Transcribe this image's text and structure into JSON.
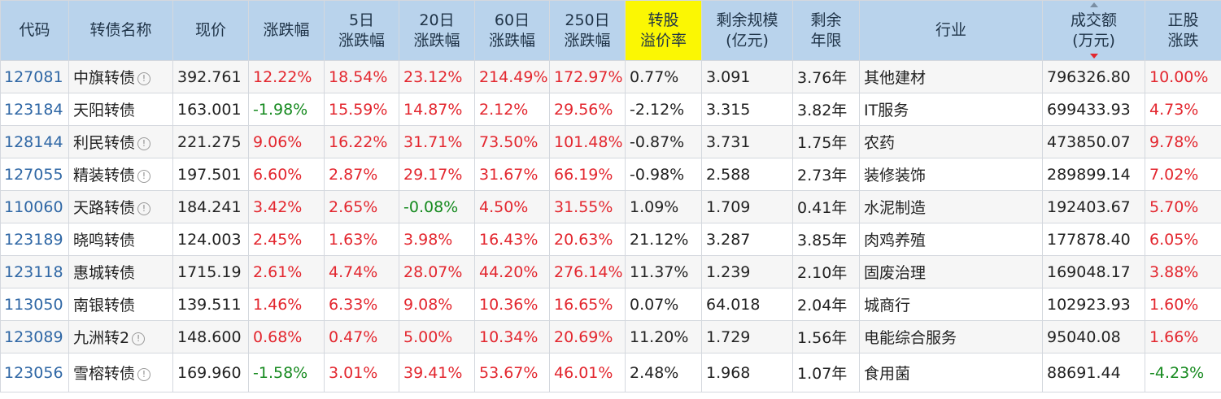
{
  "headers": {
    "code": "代码",
    "name": "转债名称",
    "price": "现价",
    "change": "涨跌幅",
    "change5d_1": "5日",
    "change5d_2": "涨跌幅",
    "change20d_1": "20日",
    "change20d_2": "涨跌幅",
    "change60d_1": "60日",
    "change60d_2": "涨跌幅",
    "change250d_1": "250日",
    "change250d_2": "涨跌幅",
    "premium_1": "转股",
    "premium_2": "溢价率",
    "scale_1": "剩余规模",
    "scale_2": "(亿元)",
    "years_1": "剩余",
    "years_2": "年限",
    "industry": "行业",
    "volume_1": "成交额",
    "volume_2": "(万元)",
    "stock_1": "正股",
    "stock_2": "涨跌"
  },
  "info_icon_glyph": "!",
  "colors": {
    "header_bg": "#b9d3ec",
    "highlight": "#fbf703",
    "up": "#e3262e",
    "down": "#168a1f",
    "code": "#2f67a5"
  },
  "rows": [
    {
      "code": "127081",
      "name": "中旗转债",
      "info": true,
      "price": "392.761",
      "change": "12.22%",
      "change5d": "18.54%",
      "change20d": "23.12%",
      "change60d": "214.49%",
      "change250d": "172.97%",
      "premium": "0.77%",
      "scale": "3.091",
      "years": "3.76年",
      "industry": "其他建材",
      "volume": "796326.80",
      "stock": "10.00%"
    },
    {
      "code": "123184",
      "name": "天阳转债",
      "info": false,
      "price": "163.001",
      "change": "-1.98%",
      "change5d": "15.59%",
      "change20d": "14.87%",
      "change60d": "2.12%",
      "change250d": "29.56%",
      "premium": "-2.12%",
      "scale": "3.315",
      "years": "3.82年",
      "industry": "IT服务",
      "volume": "699433.93",
      "stock": "4.73%"
    },
    {
      "code": "128144",
      "name": "利民转债",
      "info": true,
      "price": "221.275",
      "change": "9.06%",
      "change5d": "16.22%",
      "change20d": "31.71%",
      "change60d": "73.50%",
      "change250d": "101.48%",
      "premium": "-0.87%",
      "scale": "3.731",
      "years": "1.75年",
      "industry": "农药",
      "volume": "473850.07",
      "stock": "9.78%"
    },
    {
      "code": "127055",
      "name": "精装转债",
      "info": true,
      "price": "197.501",
      "change": "6.60%",
      "change5d": "2.87%",
      "change20d": "29.17%",
      "change60d": "31.67%",
      "change250d": "66.19%",
      "premium": "-0.98%",
      "scale": "2.588",
      "years": "2.73年",
      "industry": "装修装饰",
      "volume": "289899.14",
      "stock": "7.02%"
    },
    {
      "code": "110060",
      "name": "天路转债",
      "info": true,
      "price": "184.241",
      "change": "3.42%",
      "change5d": "2.65%",
      "change20d": "-0.08%",
      "change60d": "4.50%",
      "change250d": "31.55%",
      "premium": "1.09%",
      "scale": "1.709",
      "years": "0.41年",
      "industry": "水泥制造",
      "volume": "192403.67",
      "stock": "5.70%"
    },
    {
      "code": "123189",
      "name": "晓鸣转债",
      "info": false,
      "price": "124.003",
      "change": "2.45%",
      "change5d": "1.63%",
      "change20d": "3.98%",
      "change60d": "16.43%",
      "change250d": "20.63%",
      "premium": "21.12%",
      "scale": "3.287",
      "years": "3.85年",
      "industry": "肉鸡养殖",
      "volume": "177878.40",
      "stock": "6.05%"
    },
    {
      "code": "123118",
      "name": "惠城转债",
      "info": false,
      "price": "1715.19",
      "change": "2.61%",
      "change5d": "4.74%",
      "change20d": "28.07%",
      "change60d": "44.20%",
      "change250d": "276.14%",
      "premium": "11.37%",
      "scale": "1.239",
      "years": "2.10年",
      "industry": "固废治理",
      "volume": "169048.17",
      "stock": "3.88%"
    },
    {
      "code": "113050",
      "name": "南银转债",
      "info": false,
      "price": "139.511",
      "change": "1.46%",
      "change5d": "6.33%",
      "change20d": "9.08%",
      "change60d": "10.36%",
      "change250d": "16.65%",
      "premium": "0.07%",
      "scale": "64.018",
      "years": "2.04年",
      "industry": "城商行",
      "volume": "102923.93",
      "stock": "1.60%"
    },
    {
      "code": "123089",
      "name": "九洲转2",
      "info": true,
      "price": "148.600",
      "change": "0.68%",
      "change5d": "0.47%",
      "change20d": "5.00%",
      "change60d": "10.34%",
      "change250d": "20.69%",
      "premium": "11.20%",
      "scale": "1.729",
      "years": "1.56年",
      "industry": "电能综合服务",
      "volume": "95040.08",
      "stock": "1.66%"
    },
    {
      "code": "123056",
      "name": "雪榕转债",
      "info": true,
      "price": "169.960",
      "change": "-1.58%",
      "change5d": "3.01%",
      "change20d": "39.41%",
      "change60d": "53.67%",
      "change250d": "46.01%",
      "premium": "2.48%",
      "scale": "1.968",
      "years": "1.07年",
      "industry": "食用菌",
      "volume": "88691.44",
      "stock": "-4.23%"
    }
  ]
}
